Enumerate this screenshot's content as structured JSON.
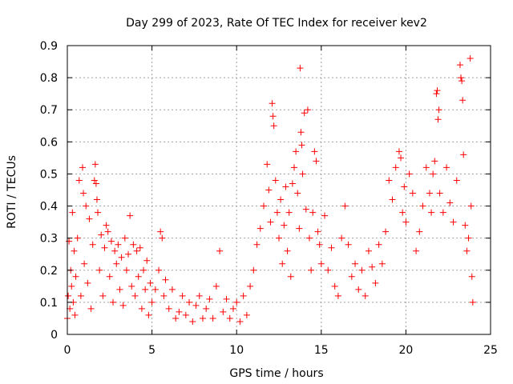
{
  "chart_data": {
    "type": "scatter",
    "title": "Day 299 of 2023, Rate Of TEC Index for receiver kev2",
    "xlabel": "GPS time / hours",
    "ylabel": "ROTI / TECUs",
    "xlim": [
      0,
      25
    ],
    "ylim": [
      0,
      0.9
    ],
    "x_ticks": [
      "0",
      "5",
      "10",
      "15",
      "20",
      "25"
    ],
    "x_tick_values": [
      0,
      5,
      10,
      15,
      20,
      25
    ],
    "y_ticks": [
      "0",
      "0.1",
      "0.2",
      "0.3",
      "0.4",
      "0.5",
      "0.6",
      "0.7",
      "0.8",
      "0.9"
    ],
    "y_tick_values": [
      0,
      0.1,
      0.2,
      0.3,
      0.4,
      0.5,
      0.6,
      0.7,
      0.8,
      0.9
    ],
    "grid": true,
    "marker": "plus",
    "color": "#ff0000",
    "series": [
      {
        "points": [
          [
            0.0,
            0.05
          ],
          [
            0.05,
            0.12
          ],
          [
            0.1,
            0.29
          ],
          [
            0.15,
            0.08
          ],
          [
            0.2,
            0.2
          ],
          [
            0.25,
            0.15
          ],
          [
            0.3,
            0.38
          ],
          [
            0.35,
            0.1
          ],
          [
            0.4,
            0.26
          ],
          [
            0.45,
            0.06
          ],
          [
            0.5,
            0.18
          ],
          [
            0.6,
            0.3
          ],
          [
            0.7,
            0.48
          ],
          [
            0.8,
            0.12
          ],
          [
            0.9,
            0.52
          ],
          [
            0.95,
            0.44
          ],
          [
            1.0,
            0.22
          ],
          [
            1.1,
            0.4
          ],
          [
            1.2,
            0.16
          ],
          [
            1.3,
            0.36
          ],
          [
            1.4,
            0.08
          ],
          [
            1.5,
            0.28
          ],
          [
            1.6,
            0.48
          ],
          [
            1.65,
            0.53
          ],
          [
            1.7,
            0.47
          ],
          [
            1.75,
            0.42
          ],
          [
            1.8,
            0.38
          ],
          [
            1.9,
            0.2
          ],
          [
            2.0,
            0.31
          ],
          [
            2.1,
            0.12
          ],
          [
            2.2,
            0.27
          ],
          [
            2.3,
            0.34
          ],
          [
            2.4,
            0.32
          ],
          [
            2.5,
            0.18
          ],
          [
            2.6,
            0.29
          ],
          [
            2.7,
            0.1
          ],
          [
            2.8,
            0.26
          ],
          [
            2.9,
            0.22
          ],
          [
            3.0,
            0.28
          ],
          [
            3.1,
            0.14
          ],
          [
            3.2,
            0.24
          ],
          [
            3.3,
            0.09
          ],
          [
            3.4,
            0.3
          ],
          [
            3.5,
            0.2
          ],
          [
            3.6,
            0.25
          ],
          [
            3.7,
            0.37
          ],
          [
            3.8,
            0.15
          ],
          [
            3.9,
            0.28
          ],
          [
            4.0,
            0.12
          ],
          [
            4.1,
            0.26
          ],
          [
            4.2,
            0.18
          ],
          [
            4.3,
            0.27
          ],
          [
            4.4,
            0.08
          ],
          [
            4.5,
            0.2
          ],
          [
            4.6,
            0.14
          ],
          [
            4.7,
            0.23
          ],
          [
            4.8,
            0.06
          ],
          [
            4.9,
            0.16
          ],
          [
            5.0,
            0.1
          ],
          [
            5.2,
            0.14
          ],
          [
            5.4,
            0.2
          ],
          [
            5.5,
            0.32
          ],
          [
            5.6,
            0.3
          ],
          [
            5.7,
            0.12
          ],
          [
            5.8,
            0.17
          ],
          [
            6.0,
            0.08
          ],
          [
            6.2,
            0.14
          ],
          [
            6.4,
            0.05
          ],
          [
            6.6,
            0.07
          ],
          [
            6.8,
            0.12
          ],
          [
            7.0,
            0.06
          ],
          [
            7.2,
            0.1
          ],
          [
            7.4,
            0.04
          ],
          [
            7.6,
            0.09
          ],
          [
            7.8,
            0.12
          ],
          [
            8.0,
            0.05
          ],
          [
            8.2,
            0.08
          ],
          [
            8.4,
            0.11
          ],
          [
            8.6,
            0.05
          ],
          [
            8.8,
            0.15
          ],
          [
            9.0,
            0.26
          ],
          [
            9.2,
            0.07
          ],
          [
            9.4,
            0.11
          ],
          [
            9.6,
            0.05
          ],
          [
            9.8,
            0.08
          ],
          [
            10.0,
            0.1
          ],
          [
            10.2,
            0.04
          ],
          [
            10.4,
            0.12
          ],
          [
            10.6,
            0.06
          ],
          [
            10.8,
            0.15
          ],
          [
            11.0,
            0.2
          ],
          [
            11.2,
            0.28
          ],
          [
            11.4,
            0.33
          ],
          [
            11.6,
            0.4
          ],
          [
            11.8,
            0.53
          ],
          [
            11.9,
            0.45
          ],
          [
            12.0,
            0.35
          ],
          [
            12.1,
            0.72
          ],
          [
            12.15,
            0.68
          ],
          [
            12.2,
            0.65
          ],
          [
            12.3,
            0.48
          ],
          [
            12.4,
            0.38
          ],
          [
            12.5,
            0.3
          ],
          [
            12.6,
            0.42
          ],
          [
            12.7,
            0.22
          ],
          [
            12.8,
            0.34
          ],
          [
            12.9,
            0.46
          ],
          [
            13.0,
            0.26
          ],
          [
            13.1,
            0.38
          ],
          [
            13.2,
            0.18
          ],
          [
            13.3,
            0.47
          ],
          [
            13.4,
            0.52
          ],
          [
            13.5,
            0.57
          ],
          [
            13.6,
            0.44
          ],
          [
            13.7,
            0.33
          ],
          [
            13.75,
            0.83
          ],
          [
            13.8,
            0.63
          ],
          [
            13.85,
            0.59
          ],
          [
            13.9,
            0.5
          ],
          [
            14.0,
            0.69
          ],
          [
            14.1,
            0.39
          ],
          [
            14.2,
            0.7
          ],
          [
            14.3,
            0.3
          ],
          [
            14.4,
            0.2
          ],
          [
            14.5,
            0.38
          ],
          [
            14.6,
            0.57
          ],
          [
            14.7,
            0.54
          ],
          [
            14.8,
            0.32
          ],
          [
            14.9,
            0.28
          ],
          [
            15.0,
            0.22
          ],
          [
            15.2,
            0.37
          ],
          [
            15.4,
            0.2
          ],
          [
            15.6,
            0.27
          ],
          [
            15.8,
            0.15
          ],
          [
            16.0,
            0.12
          ],
          [
            16.2,
            0.3
          ],
          [
            16.4,
            0.4
          ],
          [
            16.6,
            0.28
          ],
          [
            16.8,
            0.18
          ],
          [
            17.0,
            0.22
          ],
          [
            17.2,
            0.14
          ],
          [
            17.4,
            0.2
          ],
          [
            17.6,
            0.12
          ],
          [
            17.8,
            0.26
          ],
          [
            18.0,
            0.21
          ],
          [
            18.2,
            0.16
          ],
          [
            18.4,
            0.28
          ],
          [
            18.6,
            0.22
          ],
          [
            18.8,
            0.32
          ],
          [
            19.0,
            0.48
          ],
          [
            19.2,
            0.42
          ],
          [
            19.4,
            0.52
          ],
          [
            19.6,
            0.57
          ],
          [
            19.7,
            0.55
          ],
          [
            19.8,
            0.38
          ],
          [
            19.9,
            0.46
          ],
          [
            20.0,
            0.35
          ],
          [
            20.2,
            0.5
          ],
          [
            20.4,
            0.44
          ],
          [
            20.6,
            0.26
          ],
          [
            20.8,
            0.32
          ],
          [
            21.0,
            0.4
          ],
          [
            21.2,
            0.52
          ],
          [
            21.4,
            0.44
          ],
          [
            21.5,
            0.38
          ],
          [
            21.6,
            0.5
          ],
          [
            21.7,
            0.54
          ],
          [
            21.8,
            0.75
          ],
          [
            21.85,
            0.76
          ],
          [
            21.9,
            0.67
          ],
          [
            21.95,
            0.7
          ],
          [
            22.0,
            0.44
          ],
          [
            22.2,
            0.38
          ],
          [
            22.4,
            0.52
          ],
          [
            22.6,
            0.41
          ],
          [
            22.8,
            0.35
          ],
          [
            23.0,
            0.48
          ],
          [
            23.2,
            0.84
          ],
          [
            23.25,
            0.8
          ],
          [
            23.3,
            0.79
          ],
          [
            23.35,
            0.73
          ],
          [
            23.4,
            0.56
          ],
          [
            23.5,
            0.34
          ],
          [
            23.6,
            0.26
          ],
          [
            23.7,
            0.3
          ],
          [
            23.8,
            0.86
          ],
          [
            23.85,
            0.4
          ],
          [
            23.9,
            0.18
          ],
          [
            23.95,
            0.1
          ]
        ]
      }
    ]
  }
}
